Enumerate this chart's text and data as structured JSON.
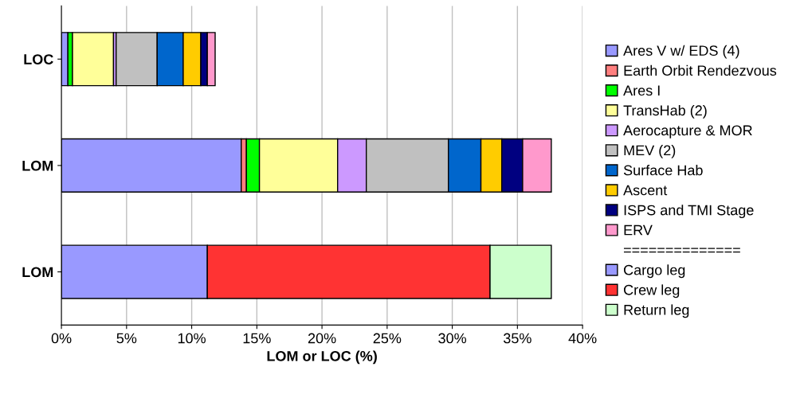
{
  "chart_data": {
    "type": "bar",
    "orientation": "horizontal",
    "stacked": true,
    "xlabel": "LOM or LOC (%)",
    "categories": [
      "LOC",
      "LOM",
      "LOM"
    ],
    "series": [
      {
        "name": "Ares V w/ EDS (4)",
        "color": "#9999ff",
        "values": [
          0.5,
          13.8,
          null
        ]
      },
      {
        "name": "Earth Orbit Rendezvous",
        "color": "#ff7f7f",
        "values": [
          null,
          0.4,
          null
        ]
      },
      {
        "name": "Ares I",
        "color": "#00ff00",
        "values": [
          0.35,
          1.0,
          null
        ]
      },
      {
        "name": "TransHab (2)",
        "color": "#ffff99",
        "values": [
          3.15,
          6.0,
          null
        ]
      },
      {
        "name": "Aerocapture & MOR",
        "color": "#cc99ff",
        "values": [
          0.2,
          2.2,
          null
        ]
      },
      {
        "name": "MEV (2)",
        "color": "#c0c0c0",
        "values": [
          3.15,
          6.3,
          null
        ]
      },
      {
        "name": "Surface Hab",
        "color": "#0066cc",
        "values": [
          2.0,
          2.5,
          null
        ]
      },
      {
        "name": "Ascent",
        "color": "#ffcc00",
        "values": [
          1.35,
          1.6,
          null
        ]
      },
      {
        "name": "ISPS and TMI Stage",
        "color": "#000080",
        "values": [
          0.5,
          1.6,
          null
        ]
      },
      {
        "name": "ERV",
        "color": "#ff99cc",
        "values": [
          0.6,
          2.2,
          null
        ]
      },
      {
        "name": "==============",
        "color": null,
        "values": [
          null,
          null,
          null
        ]
      },
      {
        "name": "Cargo leg",
        "color": "#9999ff",
        "values": [
          null,
          null,
          11.2
        ]
      },
      {
        "name": "Crew leg",
        "color": "#ff3333",
        "values": [
          null,
          null,
          21.7
        ]
      },
      {
        "name": "Return leg",
        "color": "#ccffcc",
        "values": [
          null,
          null,
          4.7
        ]
      }
    ],
    "xlim": [
      0,
      40
    ],
    "xticks": [
      {
        "value": 0,
        "label": "0%"
      },
      {
        "value": 5,
        "label": "5%"
      },
      {
        "value": 10,
        "label": "10%"
      },
      {
        "value": 15,
        "label": "15%"
      },
      {
        "value": 20,
        "label": "20%"
      },
      {
        "value": 25,
        "label": "25%"
      },
      {
        "value": 30,
        "label": "30%"
      },
      {
        "value": 35,
        "label": "35%"
      },
      {
        "value": 40,
        "label": "40%"
      }
    ],
    "grid": "x",
    "legend": "right"
  }
}
